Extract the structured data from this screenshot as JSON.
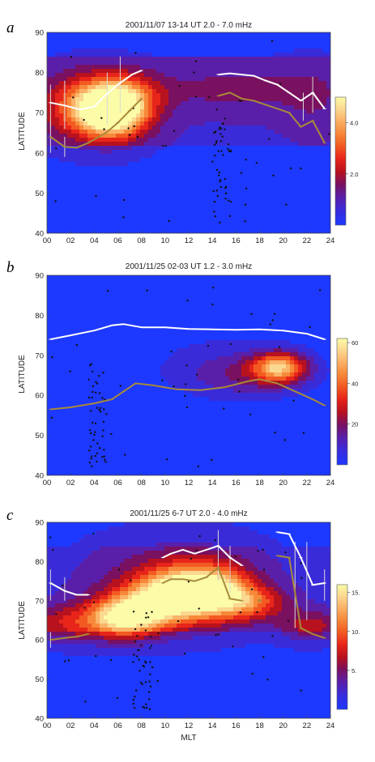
{
  "figure": {
    "xlabel": "MLT"
  },
  "chart_data": [
    {
      "type": "heatmap",
      "panel_label": "a",
      "title": "2001/11/07     13-14 UT   2.0 - 7.0 mHz",
      "ylabel": "LATITUDE",
      "xlim": [
        0,
        24
      ],
      "ylim": [
        40,
        90
      ],
      "x_ticks": [
        "00",
        "02",
        "04",
        "06",
        "08",
        "10",
        "12",
        "14",
        "16",
        "18",
        "20",
        "22",
        "24"
      ],
      "y_ticks": [
        "40",
        "50",
        "60",
        "70",
        "80",
        "90"
      ],
      "colorbar": {
        "range": [
          0,
          5
        ],
        "ticks": [
          {
            "label": "2.0",
            "value": 2
          },
          {
            "label": "4.0",
            "value": 4
          }
        ]
      },
      "hotspots": [
        {
          "mlt": 5.6,
          "lat": 70.5,
          "amp": 4.9,
          "sx": 2.0,
          "sy": 4.5
        },
        {
          "mlt": 3.5,
          "lat": 71.5,
          "amp": 2.4,
          "sx": 2.8,
          "sy": 5.5
        },
        {
          "mlt": 7.2,
          "lat": 75.0,
          "amp": 1.0,
          "sx": 2.5,
          "sy": 4.0
        },
        {
          "mlt": 16.0,
          "lat": 76.0,
          "amp": 0.8,
          "sx": 4.0,
          "sy": 4.0
        },
        {
          "mlt": 22.5,
          "lat": 74.0,
          "amp": 0.6,
          "sx": 2.0,
          "sy": 6.0
        }
      ],
      "background": 0.8,
      "series": [
        {
          "color": "#ffffff",
          "segments": [
            [
              [
                0.3,
                72.5
              ],
              [
                1.5,
                71.8
              ],
              [
                2.8,
                70.8
              ],
              [
                4.0,
                71.5
              ],
              [
                5.0,
                74.5
              ],
              [
                6.0,
                77.0
              ],
              [
                7.2,
                79.5
              ],
              [
                8.0,
                80.5
              ]
            ],
            [
              [
                14.5,
                79.5
              ],
              [
                15.5,
                79.8
              ],
              [
                16.5,
                79.5
              ],
              [
                17.5,
                79.2
              ],
              [
                18.5,
                78.0
              ],
              [
                19.5,
                77.0
              ],
              [
                20.5,
                75.0
              ],
              [
                21.5,
                73.0
              ],
              [
                22.5,
                75.0
              ],
              [
                23.5,
                71.0
              ]
            ]
          ],
          "error_bars": [
            [
              0.3,
              66,
              77
            ],
            [
              1.5,
              66,
              78
            ],
            [
              5.1,
              67,
              80
            ],
            [
              6.2,
              70,
              84
            ],
            [
              21.7,
              68,
              75
            ],
            [
              22.5,
              70,
              79
            ]
          ]
        },
        {
          "color": "#a88a3a",
          "segments": [
            [
              [
                0.3,
                64.0
              ],
              [
                1.5,
                61.5
              ],
              [
                2.5,
                61.3
              ],
              [
                3.5,
                62.5
              ],
              [
                5.0,
                65.0
              ],
              [
                6.0,
                67.5
              ],
              [
                7.0,
                70.5
              ],
              [
                8.0,
                73.5
              ]
            ],
            [
              [
                14.5,
                74.2
              ],
              [
                15.5,
                75.0
              ],
              [
                16.5,
                73.5
              ],
              [
                17.5,
                73.0
              ],
              [
                18.5,
                72.0
              ],
              [
                19.5,
                71.0
              ],
              [
                20.5,
                70.0
              ],
              [
                21.5,
                66.5
              ],
              [
                22.5,
                68.0
              ],
              [
                23.5,
                62.5
              ]
            ]
          ],
          "error_bars": [
            [
              0.3,
              60,
              68
            ],
            [
              1.5,
              59,
              64
            ]
          ]
        }
      ]
    },
    {
      "type": "heatmap",
      "panel_label": "b",
      "title": "2001/11/25     02-03 UT   1.2 - 3.0 mHz",
      "ylabel": "LATITUDE",
      "xlim": [
        0,
        24
      ],
      "ylim": [
        40,
        90
      ],
      "x_ticks": [
        "00",
        "02",
        "04",
        "06",
        "08",
        "10",
        "12",
        "14",
        "16",
        "18",
        "20",
        "22",
        "24"
      ],
      "y_ticks": [
        "40",
        "50",
        "60",
        "70",
        "80",
        "90"
      ],
      "colorbar": {
        "range": [
          0,
          62
        ],
        "ticks": [
          {
            "label": "20",
            "value": 20
          },
          {
            "label": "40",
            "value": 40
          },
          {
            "label": "60",
            "value": 60
          }
        ]
      },
      "hotspots": [
        {
          "mlt": 19.7,
          "lat": 67.0,
          "amp": 46,
          "sx": 1.6,
          "sy": 2.6
        },
        {
          "mlt": 17.0,
          "lat": 65.0,
          "amp": 14,
          "sx": 3.5,
          "sy": 4.0
        },
        {
          "mlt": 14.0,
          "lat": 68.0,
          "amp": 4,
          "sx": 4.0,
          "sy": 6.0
        }
      ],
      "background": 1,
      "series": [
        {
          "color": "#ffffff",
          "segments": [
            [
              [
                0.3,
                74.0
              ],
              [
                2.0,
                75.0
              ],
              [
                4.0,
                76.2
              ],
              [
                5.5,
                77.5
              ],
              [
                6.5,
                77.8
              ],
              [
                8.0,
                77.0
              ],
              [
                10.0,
                77.0
              ],
              [
                12.0,
                76.6
              ],
              [
                14.0,
                76.5
              ],
              [
                16.0,
                76.4
              ],
              [
                18.0,
                76.5
              ],
              [
                20.0,
                76.2
              ],
              [
                22.0,
                75.4
              ],
              [
                23.5,
                74.0
              ]
            ]
          ],
          "error_bars": []
        },
        {
          "color": "#a88a3a",
          "segments": [
            [
              [
                0.3,
                56.5
              ],
              [
                2.0,
                57.0
              ],
              [
                4.0,
                58.0
              ],
              [
                5.5,
                59.0
              ],
              [
                6.5,
                61.0
              ],
              [
                7.5,
                63.0
              ],
              [
                9.0,
                62.5
              ],
              [
                11.0,
                61.5
              ],
              [
                13.0,
                61.3
              ],
              [
                15.0,
                62.0
              ],
              [
                17.0,
                63.5
              ],
              [
                18.0,
                64.0
              ],
              [
                19.5,
                63.0
              ],
              [
                21.0,
                61.0
              ],
              [
                22.5,
                59.0
              ],
              [
                23.5,
                57.5
              ]
            ]
          ],
          "error_bars": []
        }
      ]
    },
    {
      "type": "heatmap",
      "panel_label": "c",
      "title": "2001/11/25     6-7 UT   2.0 - 4.0 mHz",
      "ylabel": "LATITUDE",
      "xlim": [
        0,
        24
      ],
      "ylim": [
        40,
        90
      ],
      "x_ticks": [
        "00",
        "02",
        "04",
        "06",
        "08",
        "10",
        "12",
        "14",
        "16",
        "18",
        "20",
        "22",
        "24"
      ],
      "y_ticks": [
        "40",
        "50",
        "60",
        "70",
        "80",
        "90"
      ],
      "colorbar": {
        "range": [
          0,
          16
        ],
        "ticks": [
          {
            "label": "15.",
            "value": 15
          },
          {
            "label": "10.",
            "value": 10
          },
          {
            "label": "5.",
            "value": 5
          }
        ]
      },
      "hotspots": [
        {
          "mlt": 6.5,
          "lat": 65.5,
          "amp": 12,
          "sx": 2.2,
          "sy": 3.5
        },
        {
          "mlt": 11.5,
          "lat": 72.5,
          "amp": 11.5,
          "sx": 2.5,
          "sy": 4.5
        },
        {
          "mlt": 14.5,
          "lat": 72.0,
          "amp": 9,
          "sx": 2.0,
          "sy": 4.5
        },
        {
          "mlt": 9.0,
          "lat": 69.0,
          "amp": 7,
          "sx": 2.5,
          "sy": 4.0
        },
        {
          "mlt": 17.5,
          "lat": 69.5,
          "amp": 6,
          "sx": 2.0,
          "sy": 3.0
        },
        {
          "mlt": 1.5,
          "lat": 64.0,
          "amp": 5,
          "sx": 2.5,
          "sy": 3.5
        },
        {
          "mlt": 22.5,
          "lat": 63.5,
          "amp": 5,
          "sx": 2.0,
          "sy": 3.0
        },
        {
          "mlt": 11.0,
          "lat": 74.0,
          "amp": 4,
          "sx": 6.0,
          "sy": 9.0
        }
      ],
      "background": 1.5,
      "series": [
        {
          "color": "#ffffff",
          "segments": [
            [
              [
                0.3,
                74.5
              ],
              [
                1.5,
                72.5
              ],
              [
                2.5,
                71.5
              ],
              [
                3.5,
                71.5
              ]
            ],
            [
              [
                9.8,
                81.0
              ],
              [
                10.5,
                82.0
              ],
              [
                11.5,
                83.0
              ],
              [
                12.5,
                82.0
              ],
              [
                13.5,
                83.0
              ],
              [
                14.5,
                84.0
              ],
              [
                15.5,
                81.0
              ],
              [
                16.5,
                79.0
              ]
            ],
            [
              [
                19.5,
                87.5
              ],
              [
                20.5,
                87.0
              ],
              [
                21.5,
                81.0
              ],
              [
                22.5,
                74.0
              ],
              [
                23.5,
                74.5
              ]
            ]
          ],
          "error_bars": [
            [
              0.3,
              70,
              78
            ],
            [
              1.5,
              70,
              76
            ],
            [
              14.5,
              75,
              88
            ],
            [
              15.5,
              72,
              84
            ],
            [
              21.0,
              63,
              85
            ],
            [
              22.0,
              65,
              85
            ],
            [
              23.5,
              70,
              78
            ]
          ]
        },
        {
          "color": "#a88a3a",
          "segments": [
            [
              [
                0.3,
                60.0
              ],
              [
                1.5,
                60.5
              ],
              [
                2.5,
                60.8
              ],
              [
                3.5,
                61.5
              ]
            ],
            [
              [
                9.8,
                74.5
              ],
              [
                10.5,
                75.5
              ],
              [
                11.5,
                75.5
              ],
              [
                12.5,
                75.0
              ],
              [
                13.5,
                76.0
              ],
              [
                14.5,
                78.5
              ],
              [
                15.5,
                70.5
              ],
              [
                16.5,
                70.0
              ]
            ],
            [
              [
                18.0,
                70.0
              ]
            ],
            [
              [
                19.5,
                81.5
              ],
              [
                20.5,
                81.0
              ],
              [
                21.5,
                63.0
              ],
              [
                22.5,
                61.5
              ],
              [
                23.5,
                60.5
              ]
            ]
          ],
          "error_bars": [
            [
              0.3,
              58,
              62
            ]
          ]
        }
      ]
    }
  ]
}
